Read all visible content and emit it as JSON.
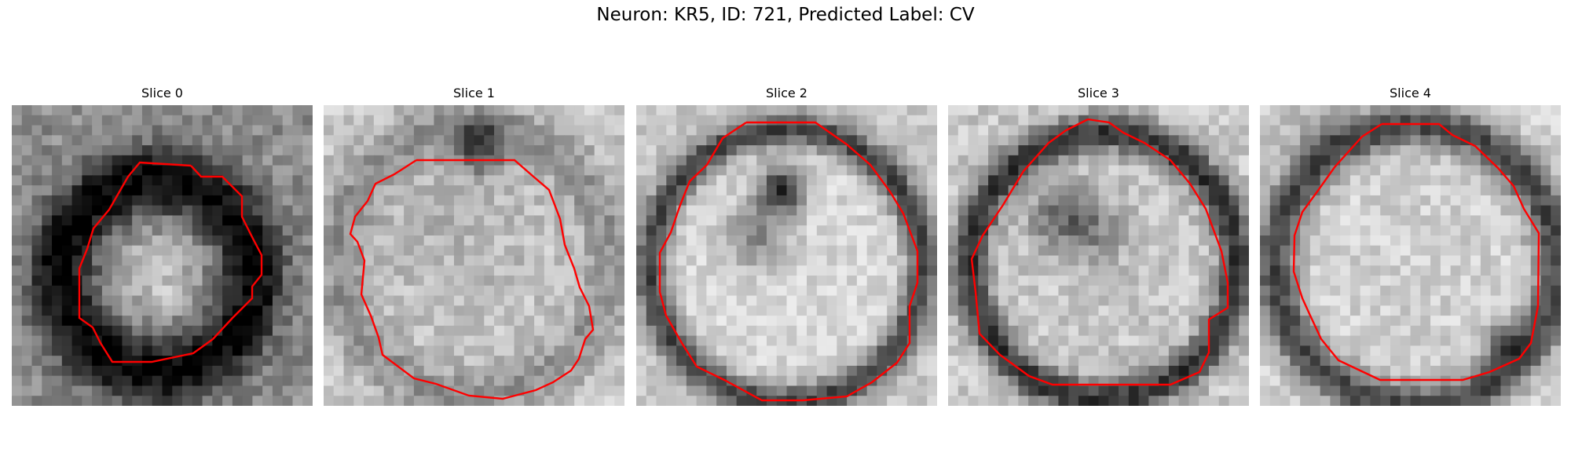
{
  "figure": {
    "title": "Neuron: KR5, ID: 721, Predicted Label: CV"
  },
  "panels": [
    {
      "title": "Slice 0",
      "kind": "dark-ring-bright-center"
    },
    {
      "title": "Slice 1",
      "kind": "bright-disc-faint-edge"
    },
    {
      "title": "Slice 2",
      "kind": "bright-disc-dark-notch"
    },
    {
      "title": "Slice 3",
      "kind": "ring-with-dark-center-streak"
    },
    {
      "title": "Slice 4",
      "kind": "bright-disc-dark-rim"
    }
  ],
  "colors": {
    "contour": "#ff0000",
    "grayscale": "black-to-white"
  }
}
